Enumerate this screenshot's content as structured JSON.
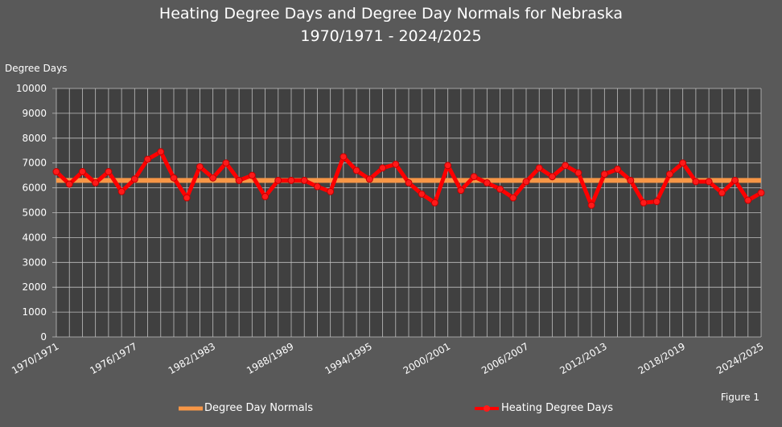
{
  "chart_data": {
    "type": "line",
    "title": "Heating Degree Days and Degree Day Normals for Nebraska",
    "subtitle": "1970/1971 - 2024/2025",
    "ylabel": "Degree Days",
    "xlabel": "",
    "ylim": [
      0,
      10000
    ],
    "yticks": [
      0,
      1000,
      2000,
      3000,
      4000,
      5000,
      6000,
      7000,
      8000,
      9000,
      10000
    ],
    "xtick_labels": [
      "1970/1971",
      "1976/1977",
      "1982/1983",
      "1988/1989",
      "1994/1995",
      "2000/2001",
      "2006/2007",
      "2012/2013",
      "2018/2019",
      "2024/2025"
    ],
    "start_year": 1970,
    "grid": true,
    "legend": "bottom",
    "annotation": "Figure 1",
    "series": [
      {
        "name": "Degree Day Normals",
        "color": "#F79646",
        "values_constant": 6300
      },
      {
        "name": "Heating Degree Days",
        "color": "#FF0000",
        "values": [
          6650,
          6150,
          6650,
          6200,
          6650,
          5850,
          6350,
          7150,
          7450,
          6400,
          5600,
          6850,
          6400,
          7000,
          6300,
          6500,
          5650,
          6300,
          6300,
          6300,
          6050,
          5850,
          7250,
          6700,
          6350,
          6800,
          6950,
          6200,
          5750,
          5400,
          6900,
          5900,
          6450,
          6200,
          5950,
          5600,
          6250,
          6800,
          6450,
          6900,
          6600,
          5300,
          6550,
          6750,
          6300,
          5400,
          5450,
          6550,
          7000,
          6250,
          6250,
          5800,
          6300,
          5500,
          5800
        ]
      }
    ]
  }
}
